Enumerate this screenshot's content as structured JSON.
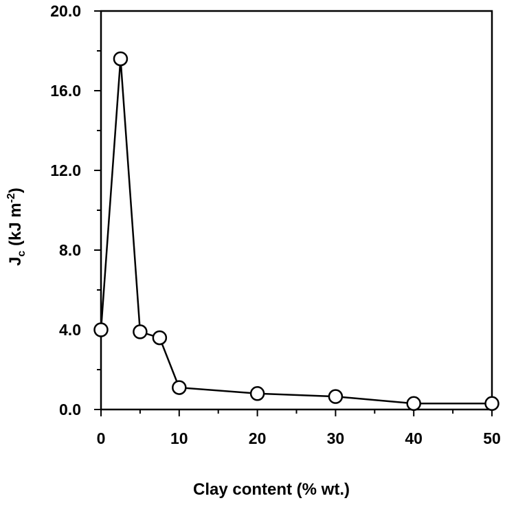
{
  "chart_data": {
    "type": "line",
    "xlabel": "Clay content (% wt.)",
    "ylabel": {
      "main": "J",
      "sub": "c",
      "rest": " (kJ m",
      "sup": "-2",
      "end": ")"
    },
    "xlim": [
      0,
      50
    ],
    "ylim": [
      0,
      20
    ],
    "x_ticks": [
      0,
      10,
      20,
      30,
      40,
      50
    ],
    "x_tick_labels": [
      "0",
      "10",
      "20",
      "30",
      "40",
      "50"
    ],
    "y_ticks": [
      0,
      4,
      8,
      12,
      16,
      20
    ],
    "y_tick_labels": [
      "0.0",
      "4.0",
      "8.0",
      "12.0",
      "16.0",
      "20.0"
    ],
    "grid": false,
    "series": [
      {
        "marker": "open-circle",
        "points": [
          {
            "x": 0,
            "y": 4.0
          },
          {
            "x": 2.5,
            "y": 17.6
          },
          {
            "x": 5,
            "y": 3.9
          },
          {
            "x": 7.5,
            "y": 3.6
          },
          {
            "x": 10,
            "y": 1.1
          },
          {
            "x": 20,
            "y": 0.8
          },
          {
            "x": 30,
            "y": 0.65
          },
          {
            "x": 40,
            "y": 0.3
          },
          {
            "x": 50,
            "y": 0.3
          }
        ]
      }
    ]
  }
}
